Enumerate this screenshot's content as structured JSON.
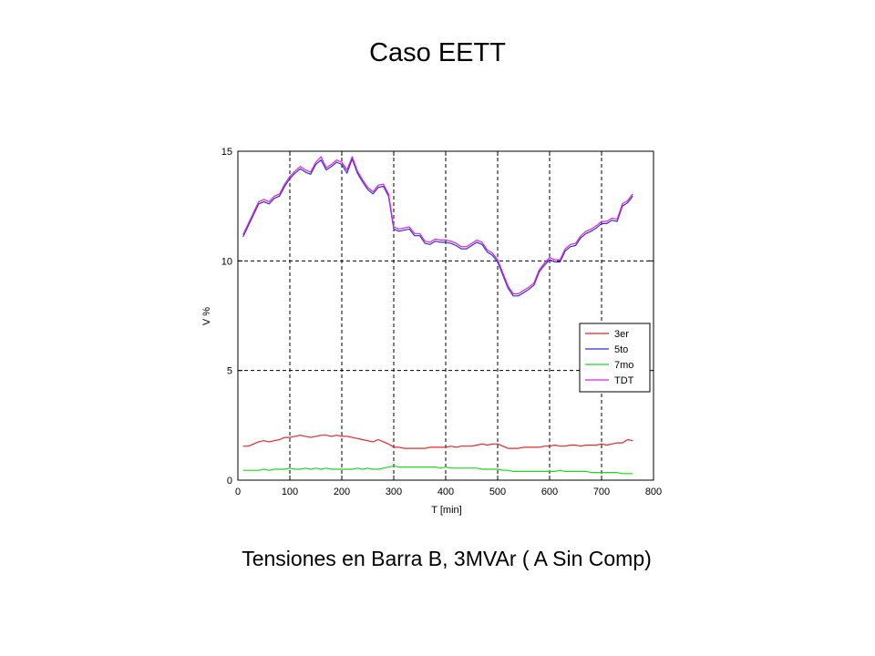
{
  "slide": {
    "title": "Caso EETT",
    "subtitle": "Tensiones en Barra B, 3MVAr ( A Sin Comp)"
  },
  "chart_data": {
    "type": "line",
    "xlabel": "T [min]",
    "ylabel": "V %",
    "xlim": [
      0,
      800
    ],
    "ylim": [
      0,
      15
    ],
    "xticks": [
      0,
      100,
      200,
      300,
      400,
      500,
      600,
      700,
      800
    ],
    "yticks": [
      0,
      5,
      10,
      15
    ],
    "grid": true,
    "legend_position": "right",
    "series": [
      {
        "name": "3er",
        "color": "#e8262b",
        "x": [
          10,
          20,
          30,
          40,
          50,
          60,
          70,
          80,
          90,
          100,
          110,
          120,
          130,
          140,
          150,
          160,
          170,
          180,
          190,
          200,
          210,
          220,
          230,
          240,
          250,
          260,
          270,
          280,
          290,
          300,
          310,
          320,
          330,
          340,
          350,
          360,
          370,
          380,
          390,
          400,
          410,
          420,
          430,
          440,
          450,
          460,
          470,
          480,
          490,
          500,
          510,
          520,
          530,
          540,
          550,
          560,
          570,
          580,
          590,
          600,
          610,
          620,
          630,
          640,
          650,
          660,
          670,
          680,
          690,
          700,
          710,
          720,
          730,
          740,
          750,
          760
        ],
        "values": [
          1.55,
          1.55,
          1.65,
          1.75,
          1.8,
          1.75,
          1.8,
          1.85,
          1.95,
          1.95,
          2.0,
          2.05,
          2.0,
          1.95,
          2.0,
          2.05,
          2.05,
          2.0,
          2.05,
          2.0,
          2.0,
          1.95,
          1.9,
          1.85,
          1.8,
          1.75,
          1.85,
          1.75,
          1.65,
          1.5,
          1.5,
          1.45,
          1.45,
          1.45,
          1.45,
          1.45,
          1.5,
          1.5,
          1.5,
          1.5,
          1.55,
          1.5,
          1.55,
          1.55,
          1.55,
          1.6,
          1.65,
          1.6,
          1.65,
          1.65,
          1.55,
          1.45,
          1.45,
          1.45,
          1.5,
          1.5,
          1.5,
          1.5,
          1.55,
          1.55,
          1.6,
          1.55,
          1.55,
          1.6,
          1.6,
          1.55,
          1.6,
          1.6,
          1.6,
          1.65,
          1.6,
          1.65,
          1.7,
          1.7,
          1.85,
          1.8
        ]
      },
      {
        "name": "5to",
        "color": "#2f2fd8",
        "x": [
          10,
          20,
          30,
          40,
          50,
          60,
          70,
          80,
          90,
          100,
          110,
          120,
          130,
          140,
          150,
          160,
          170,
          180,
          190,
          200,
          210,
          220,
          230,
          240,
          250,
          260,
          270,
          280,
          290,
          300,
          310,
          320,
          330,
          340,
          350,
          360,
          370,
          380,
          390,
          400,
          410,
          420,
          430,
          440,
          450,
          460,
          470,
          480,
          490,
          500,
          510,
          520,
          530,
          540,
          550,
          560,
          570,
          580,
          590,
          600,
          610,
          620,
          630,
          640,
          650,
          660,
          670,
          680,
          690,
          700,
          710,
          720,
          730,
          740,
          750,
          760
        ],
        "values": [
          11.1,
          11.6,
          12.1,
          12.6,
          12.7,
          12.6,
          12.85,
          12.95,
          13.4,
          13.75,
          14.0,
          14.2,
          14.05,
          13.95,
          14.4,
          14.6,
          14.15,
          14.3,
          14.5,
          14.4,
          14.0,
          14.65,
          14.0,
          13.6,
          13.25,
          13.05,
          13.35,
          13.4,
          12.95,
          11.45,
          11.35,
          11.4,
          11.45,
          11.15,
          11.15,
          10.8,
          10.75,
          10.9,
          10.85,
          10.85,
          10.8,
          10.7,
          10.55,
          10.55,
          10.7,
          10.85,
          10.75,
          10.4,
          10.25,
          9.95,
          9.35,
          8.75,
          8.4,
          8.4,
          8.55,
          8.7,
          8.9,
          9.5,
          9.8,
          10.05,
          9.95,
          9.95,
          10.45,
          10.65,
          10.7,
          11.05,
          11.25,
          11.35,
          11.5,
          11.7,
          11.7,
          11.85,
          11.8,
          12.5,
          12.65,
          12.95
        ]
      },
      {
        "name": "7mo",
        "color": "#1fd81f",
        "x": [
          10,
          20,
          30,
          40,
          50,
          60,
          70,
          80,
          90,
          100,
          110,
          120,
          130,
          140,
          150,
          160,
          170,
          180,
          190,
          200,
          210,
          220,
          230,
          240,
          250,
          260,
          270,
          280,
          290,
          300,
          310,
          320,
          330,
          340,
          350,
          360,
          370,
          380,
          390,
          400,
          410,
          420,
          430,
          440,
          450,
          460,
          470,
          480,
          490,
          500,
          510,
          520,
          530,
          540,
          550,
          560,
          570,
          580,
          590,
          600,
          610,
          620,
          630,
          640,
          650,
          660,
          670,
          680,
          690,
          700,
          710,
          720,
          730,
          740,
          750,
          760
        ],
        "values": [
          0.45,
          0.45,
          0.45,
          0.45,
          0.5,
          0.45,
          0.5,
          0.5,
          0.5,
          0.55,
          0.5,
          0.5,
          0.55,
          0.5,
          0.55,
          0.5,
          0.55,
          0.5,
          0.5,
          0.5,
          0.5,
          0.5,
          0.55,
          0.5,
          0.55,
          0.5,
          0.5,
          0.55,
          0.6,
          0.65,
          0.6,
          0.6,
          0.6,
          0.6,
          0.6,
          0.6,
          0.6,
          0.6,
          0.55,
          0.6,
          0.55,
          0.55,
          0.55,
          0.55,
          0.55,
          0.55,
          0.5,
          0.5,
          0.5,
          0.5,
          0.45,
          0.45,
          0.4,
          0.4,
          0.4,
          0.4,
          0.4,
          0.4,
          0.4,
          0.4,
          0.4,
          0.45,
          0.4,
          0.4,
          0.4,
          0.4,
          0.4,
          0.35,
          0.35,
          0.35,
          0.35,
          0.35,
          0.35,
          0.3,
          0.3,
          0.3
        ]
      },
      {
        "name": "TDT",
        "color": "#e020e0",
        "x": [
          10,
          20,
          30,
          40,
          50,
          60,
          70,
          80,
          90,
          100,
          110,
          120,
          130,
          140,
          150,
          160,
          170,
          180,
          190,
          200,
          210,
          220,
          230,
          240,
          250,
          260,
          270,
          280,
          290,
          300,
          310,
          320,
          330,
          340,
          350,
          360,
          370,
          380,
          390,
          400,
          410,
          420,
          430,
          440,
          450,
          460,
          470,
          480,
          490,
          500,
          510,
          520,
          530,
          540,
          550,
          560,
          570,
          580,
          590,
          600,
          610,
          620,
          630,
          640,
          650,
          660,
          670,
          680,
          690,
          700,
          710,
          720,
          730,
          740,
          750,
          760
        ],
        "values": [
          11.2,
          11.7,
          12.2,
          12.7,
          12.8,
          12.7,
          12.95,
          13.05,
          13.5,
          13.85,
          14.1,
          14.3,
          14.15,
          14.05,
          14.5,
          14.75,
          14.25,
          14.4,
          14.6,
          14.5,
          14.15,
          14.75,
          14.1,
          13.7,
          13.35,
          13.15,
          13.45,
          13.5,
          13.05,
          11.55,
          11.45,
          11.5,
          11.55,
          11.25,
          11.25,
          10.9,
          10.85,
          11.0,
          10.95,
          10.95,
          10.9,
          10.8,
          10.65,
          10.65,
          10.8,
          10.95,
          10.85,
          10.5,
          10.35,
          10.05,
          9.45,
          8.85,
          8.5,
          8.5,
          8.65,
          8.8,
          9.0,
          9.6,
          9.9,
          10.15,
          10.05,
          10.05,
          10.55,
          10.75,
          10.8,
          11.15,
          11.35,
          11.45,
          11.6,
          11.8,
          11.8,
          11.95,
          11.9,
          12.6,
          12.75,
          13.05
        ]
      }
    ]
  }
}
